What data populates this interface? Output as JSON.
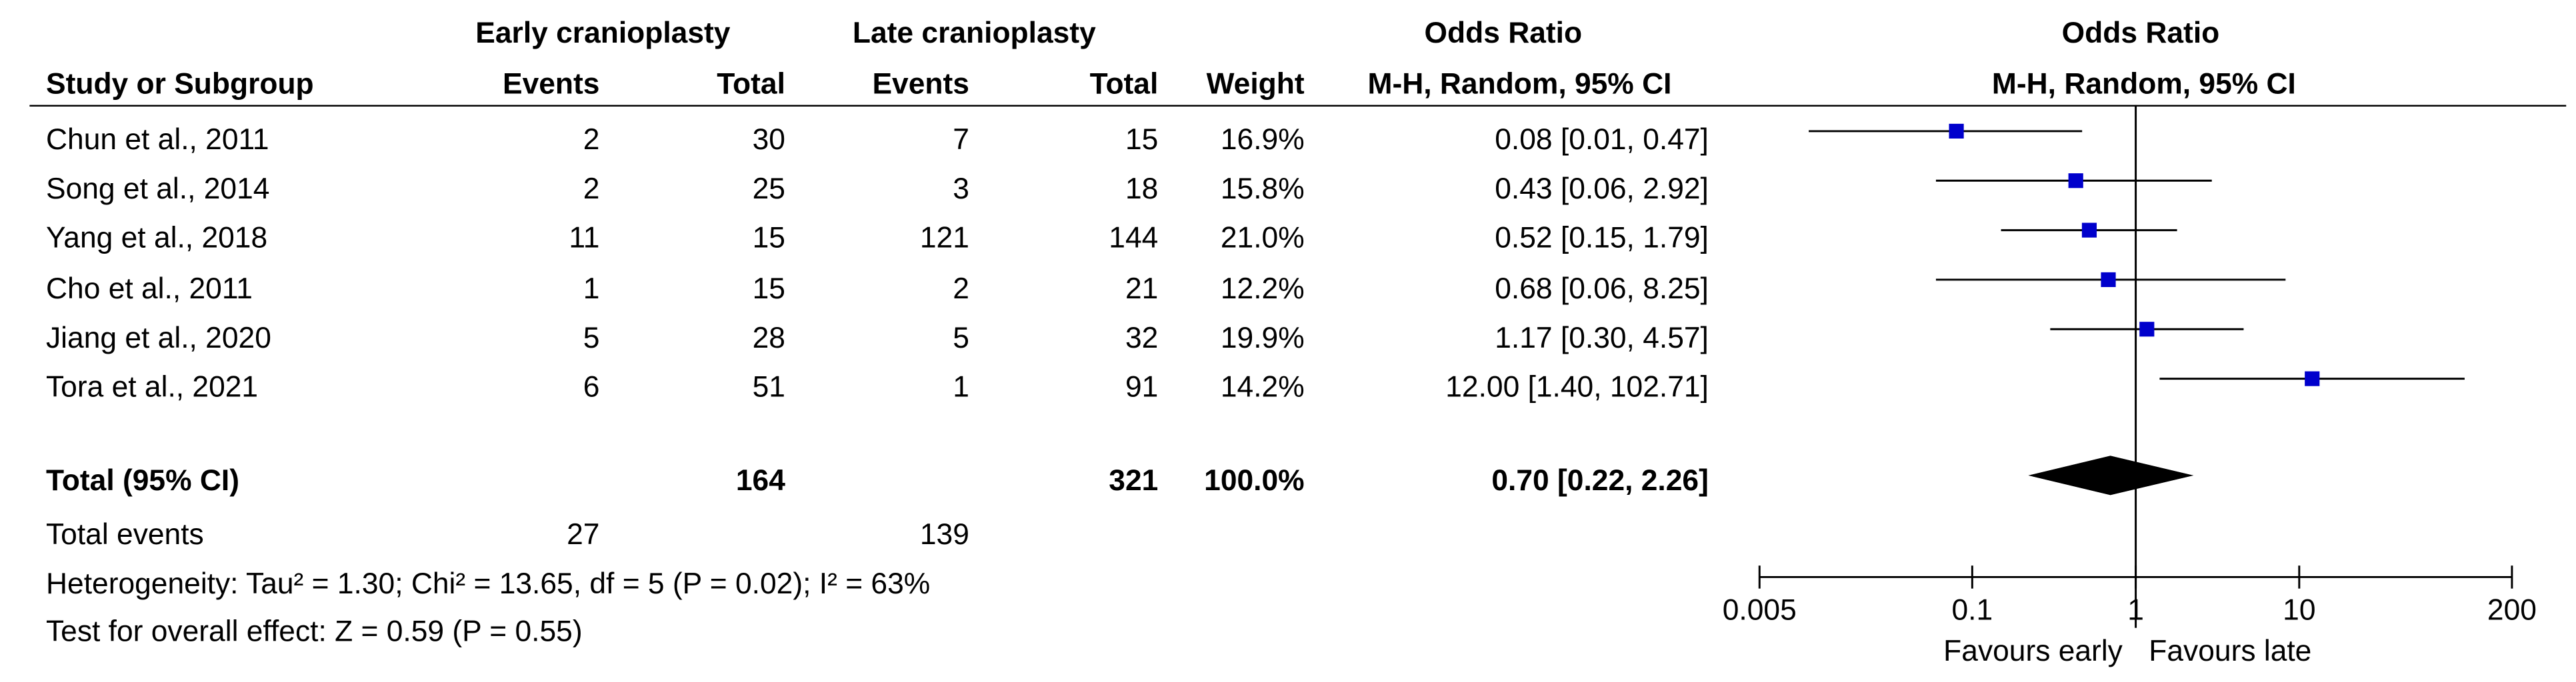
{
  "headers": {
    "group1": "Early cranioplasty",
    "group2": "Late cranioplasty",
    "study": "Study or Subgroup",
    "events": "Events",
    "total": "Total",
    "weight": "Weight",
    "or_title": "Odds Ratio",
    "or_method": "M-H, Random, 95% CI",
    "plot_title": "Odds Ratio",
    "plot_method": "M-H, Random, 95% CI"
  },
  "studies": [
    {
      "name": "Chun et al., 2011",
      "e1": "2",
      "t1": "30",
      "e2": "7",
      "t2": "15",
      "weight": "16.9%",
      "ci": "0.08 [0.01, 0.47]"
    },
    {
      "name": "Song et al., 2014",
      "e1": "2",
      "t1": "25",
      "e2": "3",
      "t2": "18",
      "weight": "15.8%",
      "ci": "0.43 [0.06, 2.92]"
    },
    {
      "name": "Yang et al., 2018",
      "e1": "11",
      "t1": "15",
      "e2": "121",
      "t2": "144",
      "weight": "21.0%",
      "ci": "0.52 [0.15, 1.79]"
    },
    {
      "name": "Cho et al., 2011",
      "e1": "1",
      "t1": "15",
      "e2": "2",
      "t2": "21",
      "weight": "12.2%",
      "ci": "0.68 [0.06, 8.25]"
    },
    {
      "name": "Jiang et al., 2020",
      "e1": "5",
      "t1": "28",
      "e2": "5",
      "t2": "32",
      "weight": "19.9%",
      "ci": "1.17 [0.30, 4.57]"
    },
    {
      "name": "Tora et al., 2021",
      "e1": "6",
      "t1": "51",
      "e2": "1",
      "t2": "91",
      "weight": "14.2%",
      "ci": "12.00 [1.40, 102.71]"
    }
  ],
  "total": {
    "label": "Total (95% CI)",
    "t1": "164",
    "t2": "321",
    "weight": "100.0%",
    "ci": "0.70 [0.22, 2.26]"
  },
  "total_events": {
    "label": "Total events",
    "e1": "27",
    "e2": "139"
  },
  "heterogeneity": "Heterogeneity: Tau² = 1.30; Chi² = 13.65, df = 5 (P = 0.02); I² = 63%",
  "overall_effect": "Test for overall effect: Z = 0.59 (P = 0.55)",
  "colors": {
    "study_marker": "#0000cc",
    "total_diamond": "#000000",
    "lines": "#000000"
  },
  "chart_data": {
    "type": "forest",
    "x_scale": "log",
    "xlim": [
      0.005,
      200
    ],
    "x_ticks": [
      "0.005",
      "0.1",
      "1",
      "10",
      "200"
    ],
    "x_tick_values": [
      0.005,
      0.1,
      1,
      10,
      200
    ],
    "null_value": 1,
    "favours_left": "Favours early",
    "favours_right": "Favours late",
    "points": [
      {
        "label": "Chun et al., 2011",
        "or": 0.08,
        "lo": 0.01,
        "hi": 0.47,
        "weight": 16.9
      },
      {
        "label": "Song et al., 2014",
        "or": 0.43,
        "lo": 0.06,
        "hi": 2.92,
        "weight": 15.8
      },
      {
        "label": "Yang et al., 2018",
        "or": 0.52,
        "lo": 0.15,
        "hi": 1.79,
        "weight": 21.0
      },
      {
        "label": "Cho et al., 2011",
        "or": 0.68,
        "lo": 0.06,
        "hi": 8.25,
        "weight": 12.2
      },
      {
        "label": "Jiang et al., 2020",
        "or": 1.17,
        "lo": 0.3,
        "hi": 4.57,
        "weight": 19.9
      },
      {
        "label": "Tora et al., 2021",
        "or": 12.0,
        "lo": 1.4,
        "hi": 102.71,
        "weight": 14.2
      }
    ],
    "pooled": {
      "label": "Total (95% CI)",
      "or": 0.7,
      "lo": 0.22,
      "hi": 2.26
    }
  }
}
